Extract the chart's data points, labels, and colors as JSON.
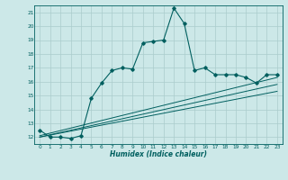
{
  "xlabel": "Humidex (Indice chaleur)",
  "ylabel": "",
  "background_color": "#cce8e8",
  "grid_color": "#aacccc",
  "line_color": "#005f5f",
  "xlim": [
    -0.5,
    23.5
  ],
  "ylim": [
    11.5,
    21.5
  ],
  "xticks": [
    0,
    1,
    2,
    3,
    4,
    5,
    6,
    7,
    8,
    9,
    10,
    11,
    12,
    13,
    14,
    15,
    16,
    17,
    18,
    19,
    20,
    21,
    22,
    23
  ],
  "yticks": [
    12,
    13,
    14,
    15,
    16,
    17,
    18,
    19,
    20,
    21
  ],
  "main_x": [
    0,
    1,
    2,
    3,
    4,
    5,
    6,
    7,
    8,
    9,
    10,
    11,
    12,
    13,
    14,
    15,
    16,
    17,
    18,
    19,
    20,
    21,
    22,
    23
  ],
  "main_y": [
    12.5,
    12.0,
    12.0,
    11.9,
    12.1,
    14.8,
    15.9,
    16.8,
    17.0,
    16.9,
    18.8,
    18.9,
    19.0,
    21.3,
    20.2,
    16.8,
    17.0,
    16.5,
    16.5,
    16.5,
    16.3,
    15.9,
    16.5,
    16.5
  ],
  "line1_x": [
    0,
    23
  ],
  "line1_y": [
    12.0,
    15.3
  ],
  "line2_x": [
    0,
    23
  ],
  "line2_y": [
    12.0,
    15.8
  ],
  "line3_x": [
    0,
    23
  ],
  "line3_y": [
    12.1,
    16.3
  ]
}
